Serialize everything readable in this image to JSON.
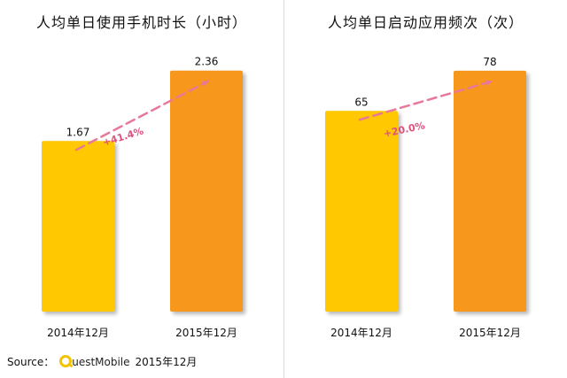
{
  "source": {
    "label": "Source：",
    "logo_text": "uestMobile",
    "date": "2015年12月"
  },
  "chart_data": [
    {
      "type": "bar",
      "title": "人均单日使用手机时长（小时）",
      "categories": [
        "2014年12月",
        "2015年12月"
      ],
      "values": [
        1.67,
        2.36
      ],
      "value_labels": [
        "1.67",
        "2.36"
      ],
      "growth_label": "+41.4%",
      "ylim": [
        0,
        2.6
      ],
      "colors": [
        "#ffc800",
        "#f7971c"
      ],
      "trend_color": "#e8789a",
      "grid": false
    },
    {
      "type": "bar",
      "title": "人均单日启动应用频次（次）",
      "categories": [
        "2014年12月",
        "2015年12月"
      ],
      "values": [
        65,
        78
      ],
      "value_labels": [
        "65",
        "78"
      ],
      "growth_label": "+20.0%",
      "ylim": [
        0,
        86
      ],
      "colors": [
        "#ffc800",
        "#f7971c"
      ],
      "trend_color": "#e8789a",
      "grid": false
    }
  ]
}
